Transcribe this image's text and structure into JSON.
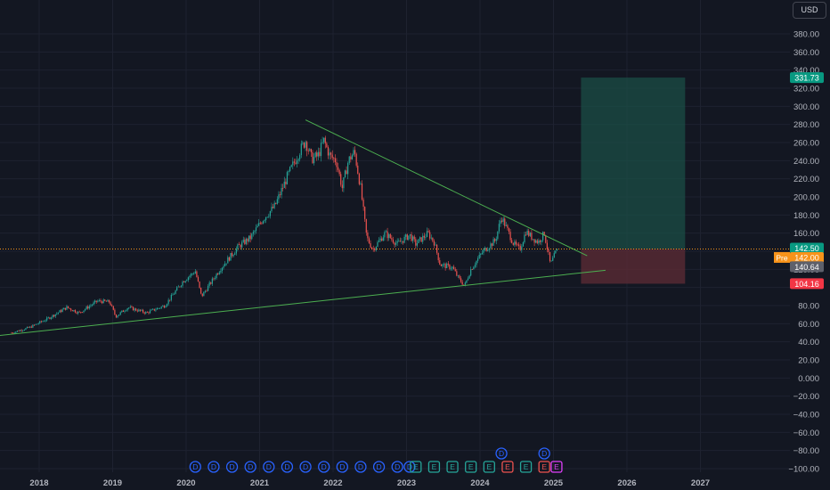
{
  "currency": "USD",
  "colors": {
    "background": "#131722",
    "grid": "#1e2230",
    "axis_text": "#b2b5be",
    "up": "#26a69a",
    "down": "#ef5350",
    "trendline": "#4caf50",
    "target_zone": "#1b4d45",
    "stop_zone": "#5a2a35",
    "target_label": "#089981",
    "stop_label": "#f23645",
    "premarket_label": "#f7931a",
    "last_label": "#5d606b",
    "dividend": "#2962ff",
    "earnings_beat": "#26a69a",
    "earnings_miss": "#ef5350",
    "earnings_upcoming": "#e040fb"
  },
  "chart_data": {
    "type": "candlestick",
    "x_axis": {
      "ticks": [
        "2018",
        "2019",
        "2020",
        "2021",
        "2022",
        "2023",
        "2024",
        "2025",
        "2026",
        "2027"
      ]
    },
    "y_axis": {
      "ticks": [
        380,
        360,
        340,
        320,
        300,
        280,
        260,
        240,
        220,
        200,
        180,
        160,
        140,
        120,
        100,
        80,
        60,
        40,
        20,
        0,
        -20,
        -40,
        -60,
        -80,
        -100
      ],
      "tick_labels": [
        "380.00",
        "360.00",
        "340.00",
        "320.00",
        "300.00",
        "280.00",
        "260.00",
        "240.00",
        "220.00",
        "200.00",
        "180.00",
        "160.00",
        "",
        "120.00",
        "",
        "80.00",
        "60.00",
        "40.00",
        "20.00",
        "0.000",
        "−20.00",
        "−40.00",
        "−60.00",
        "−80.00",
        "−100.00"
      ],
      "range": [
        -105,
        398
      ]
    },
    "price_path": [
      [
        "2017-08",
        50
      ],
      [
        "2017-11",
        56
      ],
      [
        "2018-02",
        66
      ],
      [
        "2018-05",
        78
      ],
      [
        "2018-07",
        72
      ],
      [
        "2018-10",
        85
      ],
      [
        "2018-12",
        84
      ],
      [
        "2019-01",
        68
      ],
      [
        "2019-03",
        78
      ],
      [
        "2019-06",
        72
      ],
      [
        "2019-09",
        80
      ],
      [
        "2019-12",
        107
      ],
      [
        "2020-02",
        118
      ],
      [
        "2020-03",
        90
      ],
      [
        "2020-06",
        120
      ],
      [
        "2020-09",
        145
      ],
      [
        "2020-11",
        155
      ],
      [
        "2021-01",
        175
      ],
      [
        "2021-03",
        190
      ],
      [
        "2021-05",
        222
      ],
      [
        "2021-07",
        250
      ],
      [
        "2021-08",
        262
      ],
      [
        "2021-09",
        242
      ],
      [
        "2021-10",
        245
      ],
      [
        "2021-11",
        262
      ],
      [
        "2021-12",
        245
      ],
      [
        "2022-01",
        240
      ],
      [
        "2022-02",
        210
      ],
      [
        "2022-03",
        240
      ],
      [
        "2022-04",
        250
      ],
      [
        "2022-05",
        210
      ],
      [
        "2022-06",
        155
      ],
      [
        "2022-07",
        142
      ],
      [
        "2022-09",
        160
      ],
      [
        "2022-11",
        148
      ],
      [
        "2023-01",
        158
      ],
      [
        "2023-02",
        148
      ],
      [
        "2023-04",
        160
      ],
      [
        "2023-05",
        150
      ],
      [
        "2023-06",
        125
      ],
      [
        "2023-08",
        122
      ],
      [
        "2023-09",
        110
      ],
      [
        "2023-10",
        102
      ],
      [
        "2023-11",
        120
      ],
      [
        "2024-01",
        140
      ],
      [
        "2024-03",
        152
      ],
      [
        "2024-04",
        178
      ],
      [
        "2024-06",
        148
      ],
      [
        "2024-07",
        142
      ],
      [
        "2024-08",
        162
      ],
      [
        "2024-09",
        155
      ],
      [
        "2024-10",
        150
      ],
      [
        "2024-11",
        160
      ],
      [
        "2024-12",
        125
      ],
      [
        "2025-01",
        140.64
      ]
    ],
    "trendlines": [
      {
        "from": [
          "2021-08",
          285
        ],
        "to": [
          "2025-06",
          135
        ]
      },
      {
        "from": [
          "2017-06",
          47
        ],
        "to": [
          "2025-09",
          119
        ]
      }
    ],
    "long_position": {
      "start": "2025-05",
      "end": "2026-10",
      "entry": 142.5,
      "target": 331.73,
      "stop": 104.16
    },
    "current_price_line": 142.5,
    "price_labels": [
      {
        "text": "331.73",
        "value": 331.73,
        "kind": "target"
      },
      {
        "text": "142.50",
        "value": 142.5,
        "kind": "entry"
      },
      {
        "text": "142.00",
        "value": 142.0,
        "kind": "premarket",
        "prefix": "Pre"
      },
      {
        "text": "140.64",
        "value": 140.64,
        "kind": "last"
      },
      {
        "text": "104.16",
        "value": 104.16,
        "kind": "stop"
      }
    ],
    "events": [
      {
        "date": "2020-02",
        "letter": "D",
        "kind": "dividend"
      },
      {
        "date": "2020-05",
        "letter": "D",
        "kind": "dividend"
      },
      {
        "date": "2020-08",
        "letter": "D",
        "kind": "dividend"
      },
      {
        "date": "2020-11",
        "letter": "D",
        "kind": "dividend"
      },
      {
        "date": "2021-02",
        "letter": "D",
        "kind": "dividend"
      },
      {
        "date": "2021-05",
        "letter": "D",
        "kind": "dividend"
      },
      {
        "date": "2021-08",
        "letter": "D",
        "kind": "dividend"
      },
      {
        "date": "2021-11",
        "letter": "D",
        "kind": "dividend"
      },
      {
        "date": "2022-02",
        "letter": "D",
        "kind": "dividend"
      },
      {
        "date": "2022-05",
        "letter": "D",
        "kind": "dividend"
      },
      {
        "date": "2022-08",
        "letter": "D",
        "kind": "dividend"
      },
      {
        "date": "2022-11",
        "letter": "D",
        "kind": "dividend"
      },
      {
        "date": "2023-01",
        "letter": "D",
        "kind": "dividend"
      },
      {
        "date": "2023-02",
        "letter": "E",
        "kind": "earnings_beat"
      },
      {
        "date": "2023-05",
        "letter": "E",
        "kind": "earnings_beat"
      },
      {
        "date": "2023-08",
        "letter": "E",
        "kind": "earnings_beat"
      },
      {
        "date": "2023-11",
        "letter": "E",
        "kind": "earnings_beat"
      },
      {
        "date": "2024-02",
        "letter": "E",
        "kind": "earnings_beat"
      },
      {
        "date": "2024-04",
        "letter": "D",
        "kind": "dividend",
        "row": 2
      },
      {
        "date": "2024-05",
        "letter": "E",
        "kind": "earnings_miss"
      },
      {
        "date": "2024-08",
        "letter": "E",
        "kind": "earnings_beat"
      },
      {
        "date": "2024-11",
        "letter": "D",
        "kind": "dividend",
        "row": 2
      },
      {
        "date": "2024-11",
        "letter": "E",
        "kind": "earnings_miss"
      },
      {
        "date": "2025-01",
        "letter": "E",
        "kind": "earnings_upcoming"
      }
    ]
  }
}
